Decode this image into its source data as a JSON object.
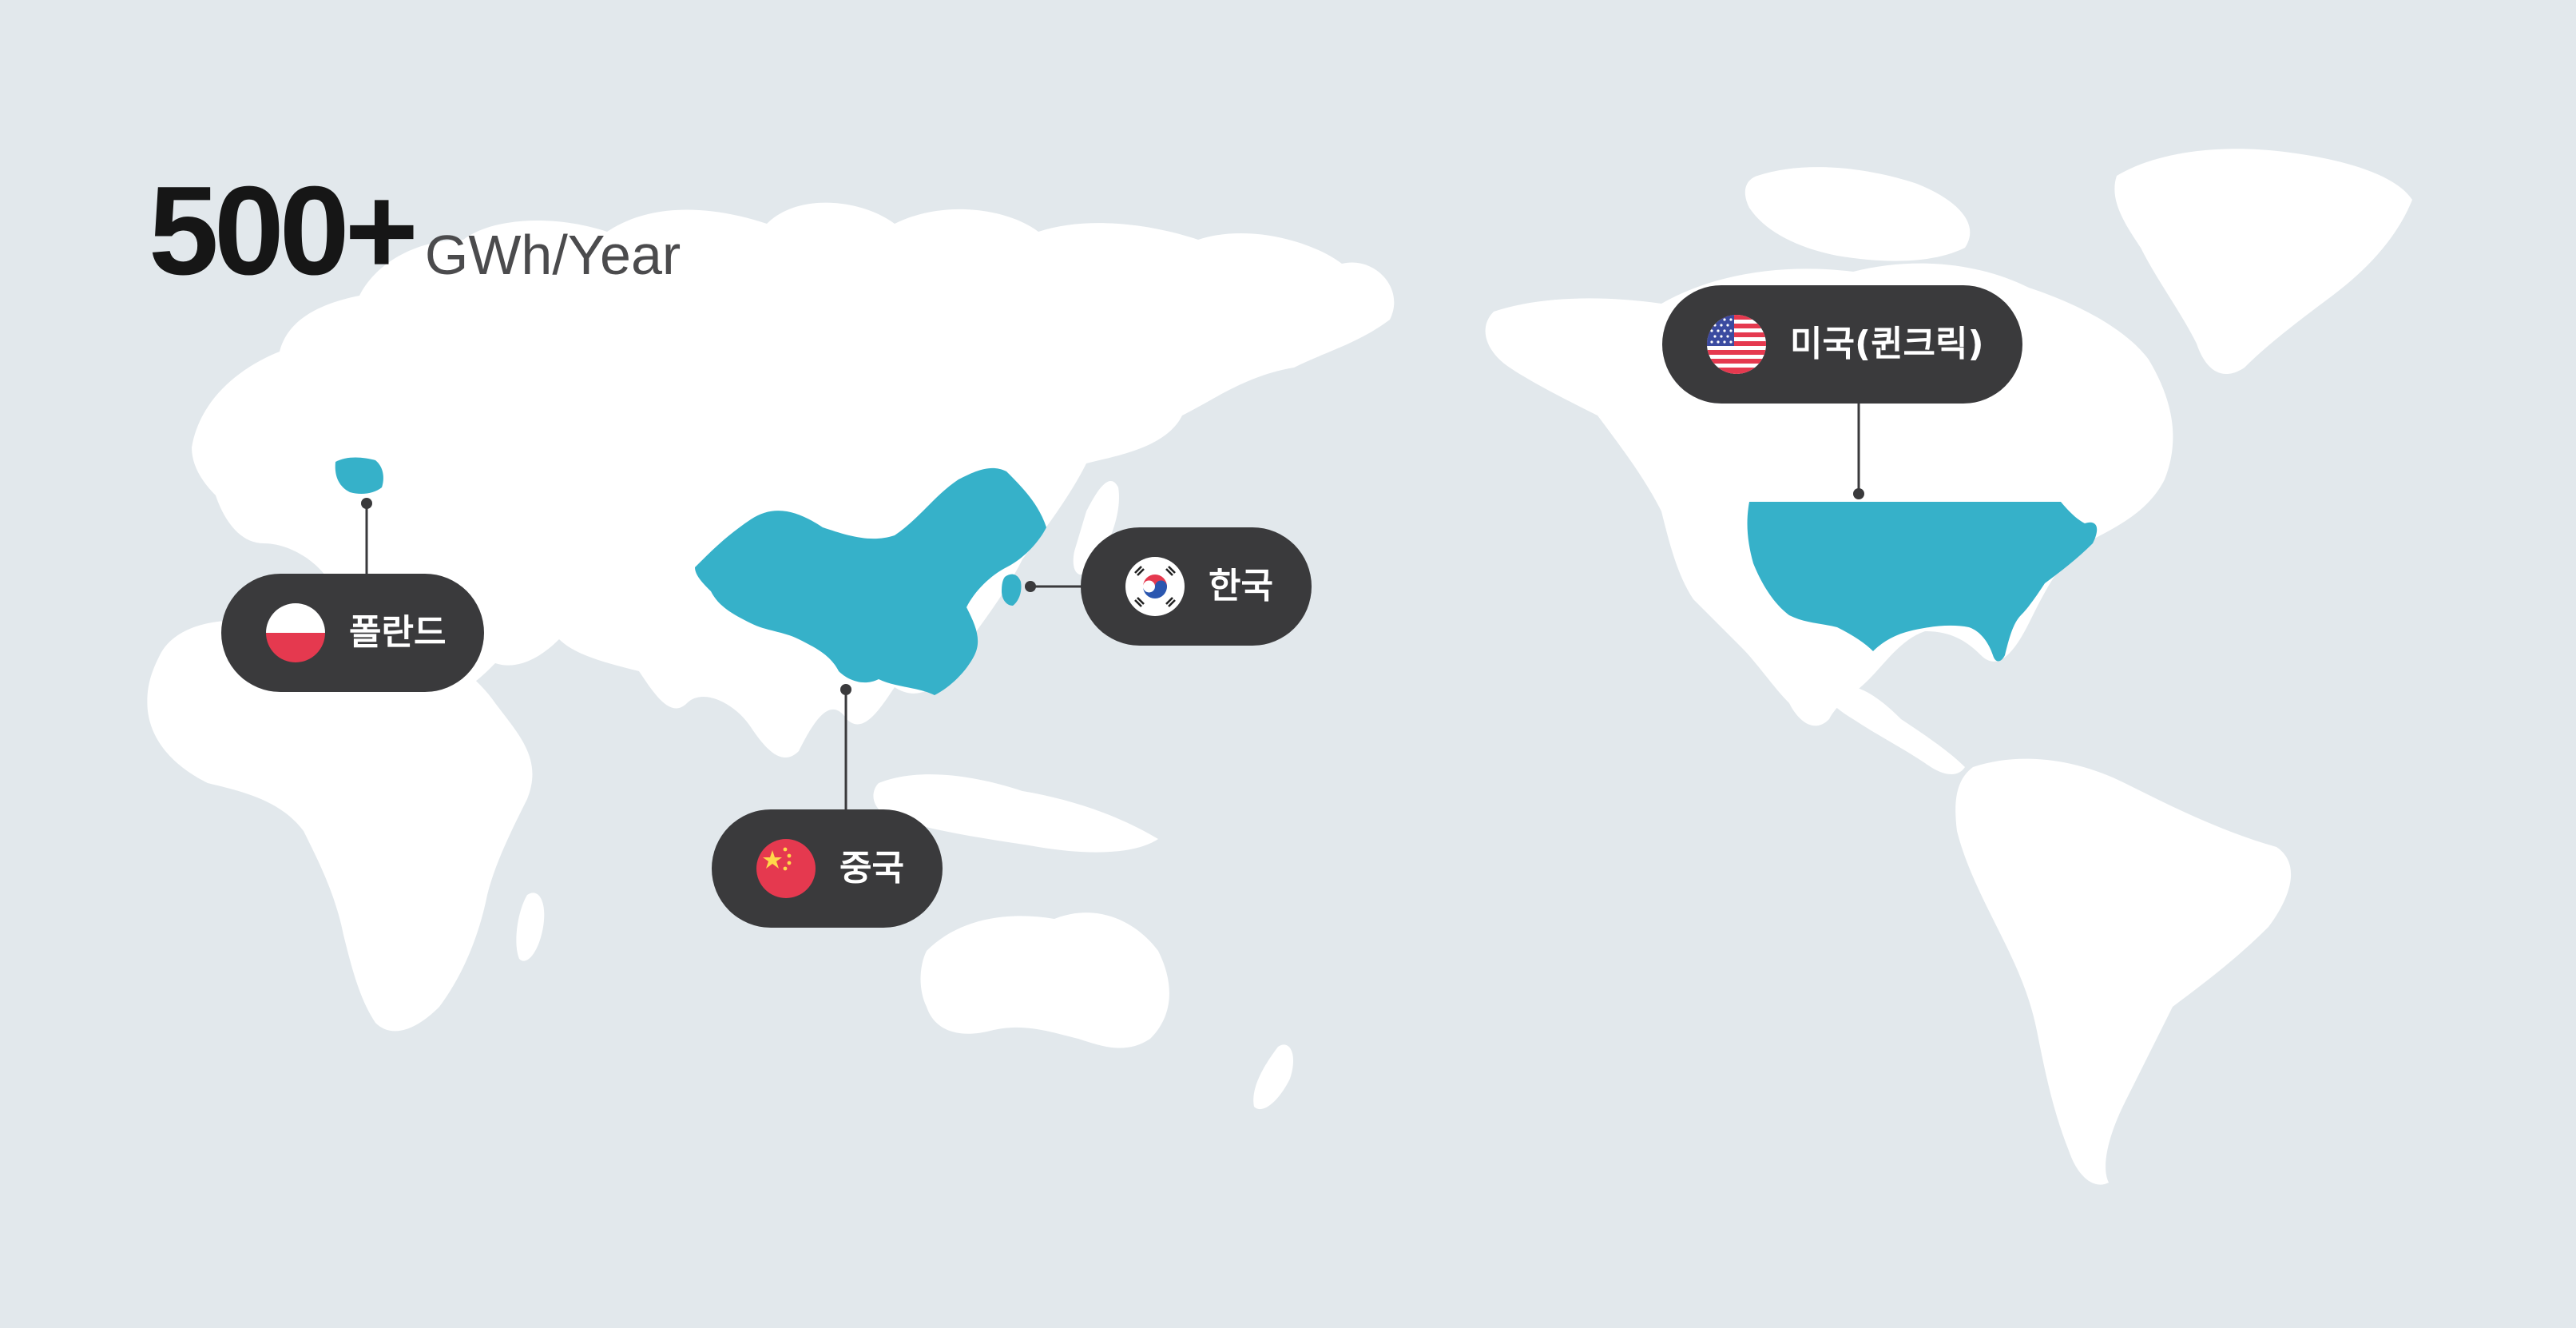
{
  "headline": {
    "value": "500+",
    "unit": "GWh/Year"
  },
  "colors": {
    "background": "#e2e8ec",
    "land": "#ffffff",
    "highlight": "#36b1c9",
    "pill": "#3a3a3c",
    "pill_text": "#ffffff"
  },
  "locations": [
    {
      "id": "poland",
      "label": "폴란드",
      "flag": "poland-flag-icon"
    },
    {
      "id": "china",
      "label": "중국",
      "flag": "china-flag-icon"
    },
    {
      "id": "korea",
      "label": "한국",
      "flag": "korea-flag-icon"
    },
    {
      "id": "usa",
      "label": "미국(퀸크릭)",
      "flag": "usa-flag-icon"
    }
  ]
}
